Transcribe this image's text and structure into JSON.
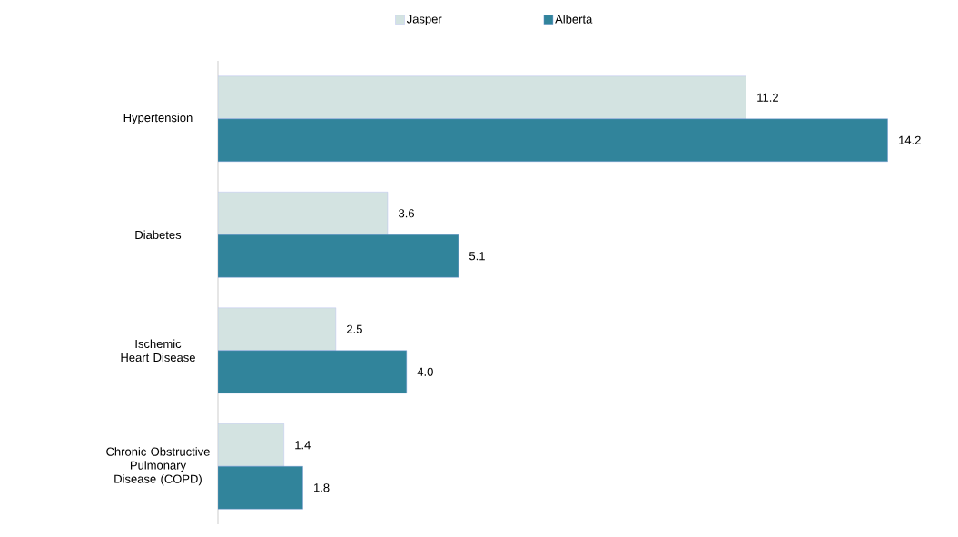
{
  "chart_data": {
    "type": "bar",
    "orientation": "horizontal",
    "categories": [
      "Hypertension",
      "Diabetes",
      "Ischemic Heart Disease",
      "Chronic Obstructive Pulmonary Disease (COPD)"
    ],
    "series": [
      {
        "name": "Jasper",
        "color": "#d3e3e1",
        "values": [
          11.2,
          3.6,
          2.5,
          1.4
        ],
        "value_labels": [
          "11.2",
          "3.6",
          "2.5",
          "1.4"
        ]
      },
      {
        "name": "Alberta",
        "color": "#31849b",
        "values": [
          14.2,
          5.1,
          4.0,
          1.8
        ],
        "value_labels": [
          "14.2",
          "5.1",
          "4.0",
          "1.8"
        ]
      }
    ],
    "legend": "top"
  }
}
